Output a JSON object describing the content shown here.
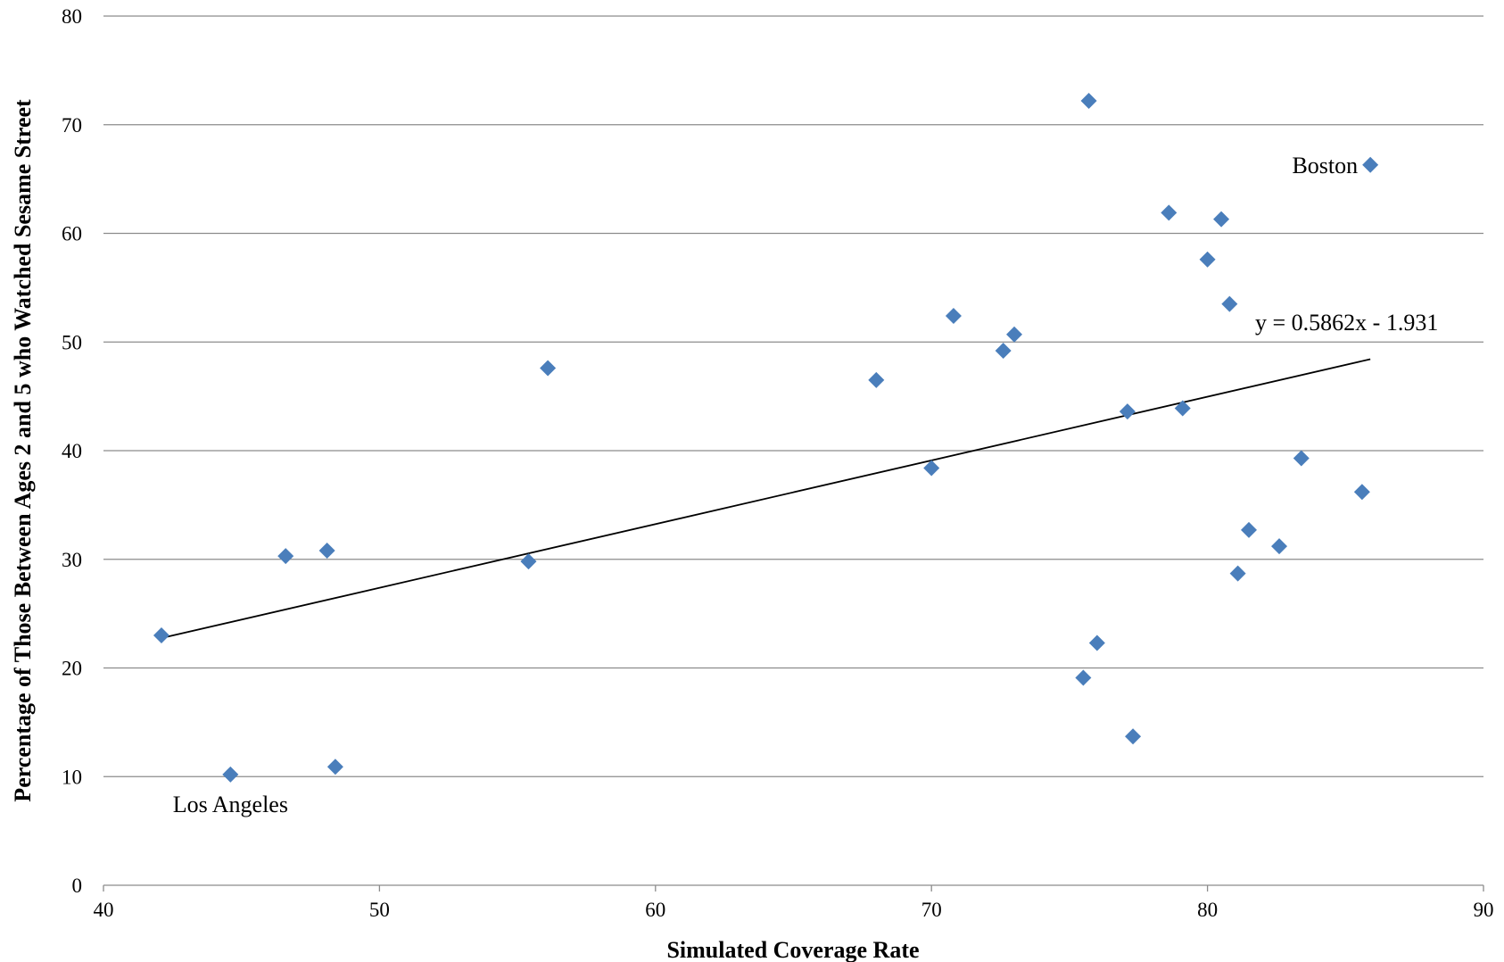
{
  "chart_data": {
    "type": "scatter",
    "xlabel": "Simulated Coverage Rate",
    "ylabel": "Percentage of Those Between Ages 2 and 5 who Watched Sesame Street",
    "xlim": [
      40,
      90
    ],
    "ylim": [
      0,
      80
    ],
    "x_ticks": [
      40,
      50,
      60,
      70,
      80,
      90
    ],
    "y_ticks": [
      0,
      10,
      20,
      30,
      40,
      50,
      60,
      70,
      80
    ],
    "grid": "horizontal",
    "marker": "diamond",
    "colors": {
      "marker": "#4a7ebb",
      "trendline": "#000000",
      "grid": "#8c8c8c"
    },
    "points": [
      {
        "x": 42.1,
        "y": 23.0
      },
      {
        "x": 44.6,
        "y": 10.2
      },
      {
        "x": 46.6,
        "y": 30.3
      },
      {
        "x": 48.1,
        "y": 30.8
      },
      {
        "x": 48.4,
        "y": 10.9
      },
      {
        "x": 55.4,
        "y": 29.8
      },
      {
        "x": 56.1,
        "y": 47.6
      },
      {
        "x": 68.0,
        "y": 46.5
      },
      {
        "x": 70.0,
        "y": 38.4
      },
      {
        "x": 70.8,
        "y": 52.4
      },
      {
        "x": 72.6,
        "y": 49.2
      },
      {
        "x": 73.0,
        "y": 50.7
      },
      {
        "x": 75.5,
        "y": 19.1
      },
      {
        "x": 75.7,
        "y": 72.2
      },
      {
        "x": 76.0,
        "y": 22.3
      },
      {
        "x": 77.1,
        "y": 43.6
      },
      {
        "x": 77.3,
        "y": 13.7
      },
      {
        "x": 78.6,
        "y": 61.9
      },
      {
        "x": 79.1,
        "y": 43.9
      },
      {
        "x": 80.0,
        "y": 57.6
      },
      {
        "x": 80.5,
        "y": 61.3
      },
      {
        "x": 80.8,
        "y": 53.5
      },
      {
        "x": 81.1,
        "y": 28.7
      },
      {
        "x": 81.5,
        "y": 32.7
      },
      {
        "x": 82.6,
        "y": 31.2
      },
      {
        "x": 83.4,
        "y": 39.3
      },
      {
        "x": 85.6,
        "y": 36.2
      },
      {
        "x": 85.9,
        "y": 66.3
      }
    ],
    "trendline": {
      "equation": "y = 0.5862x - 1.931",
      "slope": 0.5862,
      "intercept": -1.931,
      "x_range": [
        42.1,
        85.9
      ]
    },
    "annotations": [
      {
        "text": "Boston",
        "x": 85.9,
        "y": 66.3
      },
      {
        "text": "Los Angeles",
        "x": 44.6,
        "y": 10.2
      }
    ]
  }
}
